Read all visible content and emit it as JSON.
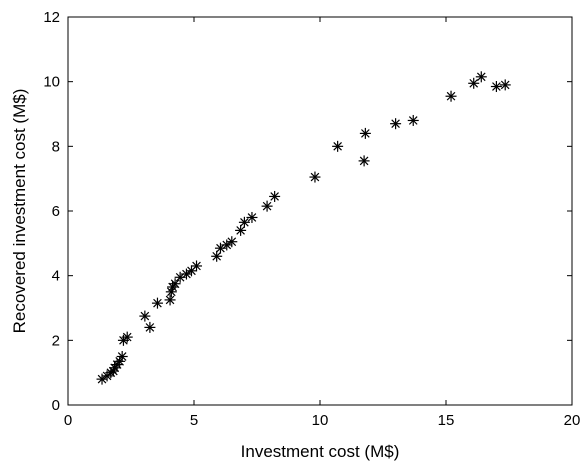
{
  "chart_data": {
    "type": "scatter",
    "title": "",
    "xlabel": "Investment cost (M$)",
    "ylabel": "Recovered investment cost (M$)",
    "xlim": [
      0,
      20
    ],
    "ylim": [
      0,
      12
    ],
    "xticks": [
      "0",
      "5",
      "10",
      "15",
      "20"
    ],
    "yticks": [
      "0",
      "2",
      "4",
      "6",
      "8",
      "10",
      "12"
    ],
    "marker": "*",
    "grid": false,
    "legend": "none",
    "colors": {
      "marker": "#000000",
      "axis": "#000000",
      "background": "#ffffff"
    },
    "series": [
      {
        "points": [
          [
            1.35,
            0.8
          ],
          [
            1.55,
            0.9
          ],
          [
            1.7,
            1.0
          ],
          [
            1.8,
            1.05
          ],
          [
            1.85,
            1.15
          ],
          [
            1.95,
            1.25
          ],
          [
            2.05,
            1.35
          ],
          [
            2.15,
            1.5
          ],
          [
            2.2,
            2.0
          ],
          [
            2.35,
            2.1
          ],
          [
            3.05,
            2.75
          ],
          [
            3.25,
            2.4
          ],
          [
            3.55,
            3.15
          ],
          [
            4.05,
            3.25
          ],
          [
            4.1,
            3.5
          ],
          [
            4.15,
            3.65
          ],
          [
            4.25,
            3.75
          ],
          [
            4.45,
            3.95
          ],
          [
            4.7,
            4.05
          ],
          [
            4.9,
            4.15
          ],
          [
            5.1,
            4.3
          ],
          [
            5.9,
            4.6
          ],
          [
            6.05,
            4.85
          ],
          [
            6.3,
            4.95
          ],
          [
            6.5,
            5.05
          ],
          [
            6.85,
            5.4
          ],
          [
            7.0,
            5.65
          ],
          [
            7.3,
            5.8
          ],
          [
            7.9,
            6.15
          ],
          [
            8.2,
            6.45
          ],
          [
            9.8,
            7.05
          ],
          [
            10.7,
            8.0
          ],
          [
            11.75,
            7.55
          ],
          [
            11.8,
            8.4
          ],
          [
            13.0,
            8.7
          ],
          [
            13.7,
            8.8
          ],
          [
            15.2,
            9.55
          ],
          [
            16.1,
            9.95
          ],
          [
            16.4,
            10.15
          ],
          [
            17.0,
            9.85
          ],
          [
            17.35,
            9.9
          ]
        ]
      }
    ]
  }
}
